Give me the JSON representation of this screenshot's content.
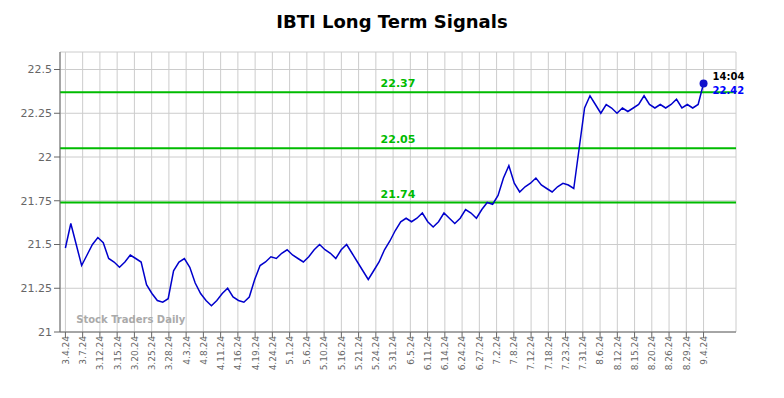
{
  "chart_data": {
    "type": "line",
    "title": "IBTI Long Term Signals",
    "x": [
      0,
      1,
      2,
      3,
      4,
      5,
      6,
      7,
      8,
      9,
      10,
      11,
      12,
      13,
      14,
      15,
      16,
      17,
      18,
      19,
      20,
      21,
      22,
      23,
      24,
      25,
      26,
      27,
      28,
      29,
      30,
      31,
      32,
      33,
      34,
      35,
      36,
      37,
      38,
      39,
      40,
      41,
      42,
      43,
      44,
      45,
      46,
      47,
      48,
      49,
      50,
      51,
      52,
      53,
      54,
      55,
      56,
      57,
      58,
      59,
      60,
      61,
      62,
      63,
      64,
      65,
      66,
      67,
      68,
      69,
      70,
      71,
      72,
      73,
      74,
      75,
      76,
      77,
      78,
      79,
      80,
      81,
      82,
      83,
      84,
      85,
      86,
      87,
      88,
      89,
      90,
      91,
      92,
      93,
      94,
      95,
      96,
      97,
      98,
      99,
      100,
      101,
      102,
      103,
      104,
      105,
      106,
      107,
      108,
      109,
      110,
      111,
      112,
      113,
      114,
      115,
      116,
      117,
      118
    ],
    "series": [
      {
        "type": "line",
        "color": "#0000cc",
        "values": [
          21.48,
          21.62,
          21.5,
          21.38,
          21.44,
          21.5,
          21.54,
          21.51,
          21.42,
          21.4,
          21.37,
          21.4,
          21.44,
          21.42,
          21.4,
          21.27,
          21.22,
          21.18,
          21.17,
          21.19,
          21.35,
          21.4,
          21.42,
          21.37,
          21.28,
          21.22,
          21.18,
          21.15,
          21.18,
          21.22,
          21.25,
          21.2,
          21.18,
          21.17,
          21.2,
          21.3,
          21.38,
          21.4,
          21.43,
          21.42,
          21.45,
          21.47,
          21.44,
          21.42,
          21.4,
          21.43,
          21.47,
          21.5,
          21.47,
          21.45,
          21.42,
          21.47,
          21.5,
          21.45,
          21.4,
          21.35,
          21.3,
          21.35,
          21.4,
          21.47,
          21.52,
          21.58,
          21.63,
          21.65,
          21.63,
          21.65,
          21.68,
          21.63,
          21.6,
          21.63,
          21.68,
          21.65,
          21.62,
          21.65,
          21.7,
          21.68,
          21.65,
          21.7,
          21.74,
          21.73,
          21.78,
          21.88,
          21.95,
          21.85,
          21.8,
          21.83,
          21.85,
          21.88,
          21.84,
          21.82,
          21.8,
          21.83,
          21.85,
          21.84,
          21.82,
          22.05,
          22.28,
          22.35,
          22.3,
          22.25,
          22.3,
          22.28,
          22.25,
          22.28,
          22.26,
          22.28,
          22.3,
          22.35,
          22.3,
          22.28,
          22.3,
          22.28,
          22.3,
          22.33,
          22.28,
          22.3,
          22.28,
          22.3,
          22.42
        ]
      },
      {
        "type": "scatter",
        "color": "#1111cc",
        "marker": "o",
        "x": [
          118
        ],
        "values": [
          22.42
        ]
      }
    ],
    "hlines": [
      {
        "y": 22.37,
        "label": "22.37",
        "color": "#00bb00"
      },
      {
        "y": 22.05,
        "label": "22.05",
        "color": "#00bb00"
      },
      {
        "y": 21.74,
        "label": "21.74",
        "color": "#00bb00"
      }
    ],
    "annotations": [
      {
        "text": "14:04",
        "x": 118,
        "y": 22.42,
        "color": "#000000"
      },
      {
        "text": "22.42",
        "x": 118,
        "y": 22.42,
        "color": "#0000ff"
      },
      {
        "text": "Stock Traders Daily",
        "x": 2,
        "y": 21.03,
        "color": "#aaaaaa"
      }
    ],
    "xlim": [
      -1,
      124
    ],
    "xticks": [
      {
        "value": 0,
        "label": "3.4.24"
      },
      {
        "value": 3.189189,
        "label": "3.7.24"
      },
      {
        "value": 6.378378,
        "label": "3.12.24"
      },
      {
        "value": 9.567568,
        "label": "3.15.24"
      },
      {
        "value": 12.756757,
        "label": "3.20.24"
      },
      {
        "value": 15.945946,
        "label": "3.25.24"
      },
      {
        "value": 19.135135,
        "label": "3.28.24"
      },
      {
        "value": 22.324324,
        "label": "4.3.24"
      },
      {
        "value": 25.513514,
        "label": "4.8.24"
      },
      {
        "value": 28.702703,
        "label": "4.11.24"
      },
      {
        "value": 31.891892,
        "label": "4.16.24"
      },
      {
        "value": 35.081081,
        "label": "4.19.24"
      },
      {
        "value": 38.27027,
        "label": "4.24.24"
      },
      {
        "value": 41.459459,
        "label": "5.1.24"
      },
      {
        "value": 44.648649,
        "label": "5.6.24"
      },
      {
        "value": 47.837838,
        "label": "5.10.24"
      },
      {
        "value": 51.027027,
        "label": "5.16.24"
      },
      {
        "value": 54.216216,
        "label": "5.21.24"
      },
      {
        "value": 57.405405,
        "label": "5.24.24"
      },
      {
        "value": 60.594595,
        "label": "5.31.24"
      },
      {
        "value": 63.783784,
        "label": "6.5.24"
      },
      {
        "value": 66.972973,
        "label": "6.11.24"
      },
      {
        "value": 70.162162,
        "label": "6.14.24"
      },
      {
        "value": 73.351351,
        "label": "6.24.24"
      },
      {
        "value": 76.540541,
        "label": "6.27.24"
      },
      {
        "value": 79.72973,
        "label": "7.2.24"
      },
      {
        "value": 82.918919,
        "label": "7.8.24"
      },
      {
        "value": 86.108108,
        "label": "7.12.24"
      },
      {
        "value": 89.297297,
        "label": "7.18.24"
      },
      {
        "value": 92.486486,
        "label": "7.23.24"
      },
      {
        "value": 95.675676,
        "label": "7.31.24"
      },
      {
        "value": 98.864865,
        "label": "8.6.24"
      },
      {
        "value": 102.054054,
        "label": "8.12.24"
      },
      {
        "value": 105.243243,
        "label": "8.15.24"
      },
      {
        "value": 108.432432,
        "label": "8.20.24"
      },
      {
        "value": 111.621622,
        "label": "8.26.24"
      },
      {
        "value": 114.810811,
        "label": "8.29.24"
      },
      {
        "value": 118,
        "label": "9.4.24"
      }
    ],
    "ylim": [
      21.0,
      22.6
    ],
    "yticks": [
      21,
      21.25,
      21.5,
      21.75,
      22,
      22.25,
      22.5
    ],
    "grid": true
  }
}
